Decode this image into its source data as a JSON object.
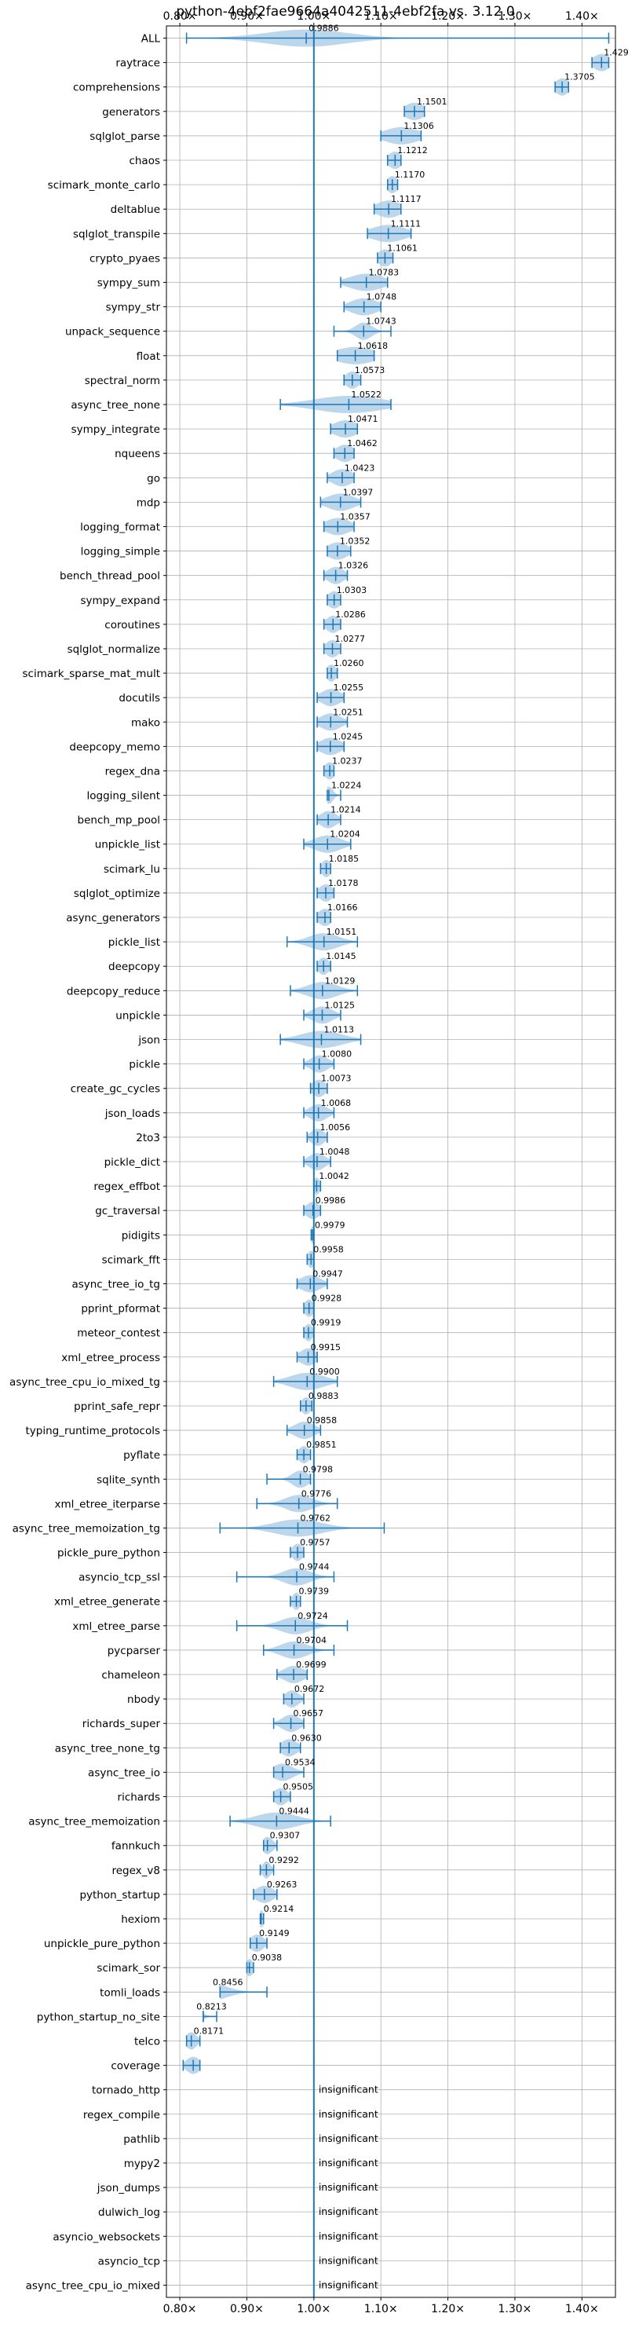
{
  "chart_data": {
    "type": "violin",
    "title": "python-4ebf2fae9664a4042511-4ebf2fa vs. 3.12.0",
    "xlabel": "",
    "ylabel": "",
    "xlim": [
      0.78,
      1.45
    ],
    "x_ticks": [
      0.8,
      0.9,
      1.0,
      1.1,
      1.2,
      1.3,
      1.4
    ],
    "x_tick_labels": [
      "0.80×",
      "0.90×",
      "1.00×",
      "1.10×",
      "1.20×",
      "1.30×",
      "1.40×"
    ],
    "reference_line": 1.0,
    "grid": true,
    "insignificant_label": "insignificant",
    "colors": {
      "violin": "#a6c8e6",
      "marker": "#1f77b4",
      "grid": "#b0b0b0",
      "text": "#000000"
    },
    "benchmarks": [
      {
        "name": "ALL",
        "label": "0.9886",
        "value": 0.9886,
        "min": 0.81,
        "max": 1.44,
        "spread": 0.06
      },
      {
        "name": "raytrace",
        "label": "1.4292",
        "value": 1.4292,
        "min": 1.415,
        "max": 1.44,
        "spread": 0.012
      },
      {
        "name": "comprehensions",
        "label": "1.3705",
        "value": 1.3705,
        "min": 1.36,
        "max": 1.38,
        "spread": 0.01
      },
      {
        "name": "generators",
        "label": "1.1501",
        "value": 1.1501,
        "min": 1.135,
        "max": 1.165,
        "spread": 0.015
      },
      {
        "name": "sqlglot_parse",
        "label": "1.1306",
        "value": 1.1306,
        "min": 1.1,
        "max": 1.16,
        "spread": 0.025
      },
      {
        "name": "chaos",
        "label": "1.1212",
        "value": 1.1212,
        "min": 1.11,
        "max": 1.13,
        "spread": 0.01
      },
      {
        "name": "scimark_monte_carlo",
        "label": "1.1170",
        "value": 1.117,
        "min": 1.11,
        "max": 1.125,
        "spread": 0.008
      },
      {
        "name": "deltablue",
        "label": "1.1117",
        "value": 1.1117,
        "min": 1.09,
        "max": 1.13,
        "spread": 0.018
      },
      {
        "name": "sqlglot_transpile",
        "label": "1.1111",
        "value": 1.1111,
        "min": 1.08,
        "max": 1.145,
        "spread": 0.025
      },
      {
        "name": "crypto_pyaes",
        "label": "1.1061",
        "value": 1.1061,
        "min": 1.095,
        "max": 1.118,
        "spread": 0.01
      },
      {
        "name": "sympy_sum",
        "label": "1.0783",
        "value": 1.0783,
        "min": 1.04,
        "max": 1.11,
        "spread": 0.025
      },
      {
        "name": "sympy_str",
        "label": "1.0748",
        "value": 1.0748,
        "min": 1.045,
        "max": 1.1,
        "spread": 0.02
      },
      {
        "name": "unpack_sequence",
        "label": "1.0743",
        "value": 1.0743,
        "min": 1.03,
        "max": 1.115,
        "spread": 0.012
      },
      {
        "name": "float",
        "label": "1.0618",
        "value": 1.0618,
        "min": 1.035,
        "max": 1.09,
        "spread": 0.03
      },
      {
        "name": "spectral_norm",
        "label": "1.0573",
        "value": 1.0573,
        "min": 1.045,
        "max": 1.07,
        "spread": 0.01
      },
      {
        "name": "async_tree_none",
        "label": "1.0522",
        "value": 1.0522,
        "min": 0.95,
        "max": 1.115,
        "spread": 0.05
      },
      {
        "name": "sympy_integrate",
        "label": "1.0471",
        "value": 1.0471,
        "min": 1.025,
        "max": 1.065,
        "spread": 0.018
      },
      {
        "name": "nqueens",
        "label": "1.0462",
        "value": 1.0462,
        "min": 1.03,
        "max": 1.06,
        "spread": 0.013
      },
      {
        "name": "go",
        "label": "1.0423",
        "value": 1.0423,
        "min": 1.02,
        "max": 1.06,
        "spread": 0.015
      },
      {
        "name": "mdp",
        "label": "1.0397",
        "value": 1.0397,
        "min": 1.01,
        "max": 1.07,
        "spread": 0.02
      },
      {
        "name": "logging_format",
        "label": "1.0357",
        "value": 1.0357,
        "min": 1.015,
        "max": 1.06,
        "spread": 0.018
      },
      {
        "name": "logging_simple",
        "label": "1.0352",
        "value": 1.0352,
        "min": 1.02,
        "max": 1.055,
        "spread": 0.015
      },
      {
        "name": "bench_thread_pool",
        "label": "1.0326",
        "value": 1.0326,
        "min": 1.015,
        "max": 1.05,
        "spread": 0.012
      },
      {
        "name": "sympy_expand",
        "label": "1.0303",
        "value": 1.0303,
        "min": 1.02,
        "max": 1.04,
        "spread": 0.01
      },
      {
        "name": "coroutines",
        "label": "1.0286",
        "value": 1.0286,
        "min": 1.015,
        "max": 1.04,
        "spread": 0.01
      },
      {
        "name": "sqlglot_normalize",
        "label": "1.0277",
        "value": 1.0277,
        "min": 1.015,
        "max": 1.04,
        "spread": 0.01
      },
      {
        "name": "scimark_sparse_mat_mult",
        "label": "1.0260",
        "value": 1.026,
        "min": 1.02,
        "max": 1.035,
        "spread": 0.007
      },
      {
        "name": "docutils",
        "label": "1.0255",
        "value": 1.0255,
        "min": 1.005,
        "max": 1.045,
        "spread": 0.014
      },
      {
        "name": "mako",
        "label": "1.0251",
        "value": 1.0251,
        "min": 1.005,
        "max": 1.05,
        "spread": 0.015
      },
      {
        "name": "deepcopy_memo",
        "label": "1.0245",
        "value": 1.0245,
        "min": 1.005,
        "max": 1.045,
        "spread": 0.015
      },
      {
        "name": "regex_dna",
        "label": "1.0237",
        "value": 1.0237,
        "min": 1.015,
        "max": 1.03,
        "spread": 0.008
      },
      {
        "name": "logging_silent",
        "label": "1.0224",
        "value": 1.0224,
        "min": 1.02,
        "max": 1.04,
        "spread": 0.006
      },
      {
        "name": "bench_mp_pool",
        "label": "1.0214",
        "value": 1.0214,
        "min": 1.005,
        "max": 1.04,
        "spread": 0.012
      },
      {
        "name": "unpickle_list",
        "label": "1.0204",
        "value": 1.0204,
        "min": 0.985,
        "max": 1.055,
        "spread": 0.02
      },
      {
        "name": "scimark_lu",
        "label": "1.0185",
        "value": 1.0185,
        "min": 1.01,
        "max": 1.025,
        "spread": 0.007
      },
      {
        "name": "sqlglot_optimize",
        "label": "1.0178",
        "value": 1.0178,
        "min": 1.005,
        "max": 1.03,
        "spread": 0.01
      },
      {
        "name": "async_generators",
        "label": "1.0166",
        "value": 1.0166,
        "min": 1.005,
        "max": 1.025,
        "spread": 0.01
      },
      {
        "name": "pickle_list",
        "label": "1.0151",
        "value": 1.0151,
        "min": 0.96,
        "max": 1.065,
        "spread": 0.022
      },
      {
        "name": "deepcopy",
        "label": "1.0145",
        "value": 1.0145,
        "min": 1.005,
        "max": 1.025,
        "spread": 0.008
      },
      {
        "name": "deepcopy_reduce",
        "label": "1.0129",
        "value": 1.0129,
        "min": 0.965,
        "max": 1.065,
        "spread": 0.022
      },
      {
        "name": "unpickle",
        "label": "1.0125",
        "value": 1.0125,
        "min": 0.985,
        "max": 1.04,
        "spread": 0.015
      },
      {
        "name": "json",
        "label": "1.0113",
        "value": 1.0113,
        "min": 0.95,
        "max": 1.07,
        "spread": 0.03
      },
      {
        "name": "pickle",
        "label": "1.0080",
        "value": 1.008,
        "min": 0.985,
        "max": 1.03,
        "spread": 0.013
      },
      {
        "name": "create_gc_cycles",
        "label": "1.0073",
        "value": 1.0073,
        "min": 0.995,
        "max": 1.02,
        "spread": 0.01
      },
      {
        "name": "json_loads",
        "label": "1.0068",
        "value": 1.0068,
        "min": 0.985,
        "max": 1.03,
        "spread": 0.013
      },
      {
        "name": "2to3",
        "label": "1.0056",
        "value": 1.0056,
        "min": 0.99,
        "max": 1.02,
        "spread": 0.01
      },
      {
        "name": "pickle_dict",
        "label": "1.0048",
        "value": 1.0048,
        "min": 0.985,
        "max": 1.025,
        "spread": 0.012
      },
      {
        "name": "regex_effbot",
        "label": "1.0042",
        "value": 1.0042,
        "min": 1.0,
        "max": 1.01,
        "spread": 0.005
      },
      {
        "name": "gc_traversal",
        "label": "0.9986",
        "value": 0.9986,
        "min": 0.985,
        "max": 1.01,
        "spread": 0.01
      },
      {
        "name": "pidigits",
        "label": "0.9979",
        "value": 0.9979,
        "min": 0.996,
        "max": 1.0,
        "spread": 0.003
      },
      {
        "name": "scimark_fft",
        "label": "0.9958",
        "value": 0.9958,
        "min": 0.99,
        "max": 1.0,
        "spread": 0.005
      },
      {
        "name": "async_tree_io_tg",
        "label": "0.9947",
        "value": 0.9947,
        "min": 0.975,
        "max": 1.02,
        "spread": 0.015
      },
      {
        "name": "pprint_pformat",
        "label": "0.9928",
        "value": 0.9928,
        "min": 0.985,
        "max": 1.0,
        "spread": 0.007
      },
      {
        "name": "meteor_contest",
        "label": "0.9919",
        "value": 0.9919,
        "min": 0.985,
        "max": 1.0,
        "spread": 0.006
      },
      {
        "name": "xml_etree_process",
        "label": "0.9915",
        "value": 0.9915,
        "min": 0.975,
        "max": 1.005,
        "spread": 0.012
      },
      {
        "name": "async_tree_cpu_io_mixed_tg",
        "label": "0.9900",
        "value": 0.99,
        "min": 0.94,
        "max": 1.035,
        "spread": 0.025
      },
      {
        "name": "pprint_safe_repr",
        "label": "0.9883",
        "value": 0.9883,
        "min": 0.98,
        "max": 0.997,
        "spread": 0.007
      },
      {
        "name": "typing_runtime_protocols",
        "label": "0.9858",
        "value": 0.9858,
        "min": 0.96,
        "max": 1.01,
        "spread": 0.015
      },
      {
        "name": "pyflate",
        "label": "0.9851",
        "value": 0.9851,
        "min": 0.975,
        "max": 0.995,
        "spread": 0.008
      },
      {
        "name": "sqlite_synth",
        "label": "0.9798",
        "value": 0.9798,
        "min": 0.93,
        "max": 0.995,
        "spread": 0.012
      },
      {
        "name": "xml_etree_iterparse",
        "label": "0.9776",
        "value": 0.9776,
        "min": 0.915,
        "max": 1.035,
        "spread": 0.02
      },
      {
        "name": "async_tree_memoization_tg",
        "label": "0.9762",
        "value": 0.9762,
        "min": 0.86,
        "max": 1.105,
        "spread": 0.035
      },
      {
        "name": "pickle_pure_python",
        "label": "0.9757",
        "value": 0.9757,
        "min": 0.965,
        "max": 0.985,
        "spread": 0.008
      },
      {
        "name": "asyncio_tcp_ssl",
        "label": "0.9744",
        "value": 0.9744,
        "min": 0.885,
        "max": 1.03,
        "spread": 0.02
      },
      {
        "name": "xml_etree_generate",
        "label": "0.9739",
        "value": 0.9739,
        "min": 0.965,
        "max": 0.98,
        "spread": 0.006
      },
      {
        "name": "xml_etree_parse",
        "label": "0.9724",
        "value": 0.9724,
        "min": 0.885,
        "max": 1.05,
        "spread": 0.022
      },
      {
        "name": "pycparser",
        "label": "0.9704",
        "value": 0.9704,
        "min": 0.925,
        "max": 1.03,
        "spread": 0.02
      },
      {
        "name": "chameleon",
        "label": "0.9699",
        "value": 0.9699,
        "min": 0.945,
        "max": 0.99,
        "spread": 0.015
      },
      {
        "name": "nbody",
        "label": "0.9672",
        "value": 0.9672,
        "min": 0.955,
        "max": 0.985,
        "spread": 0.01
      },
      {
        "name": "richards_super",
        "label": "0.9657",
        "value": 0.9657,
        "min": 0.94,
        "max": 0.985,
        "spread": 0.013
      },
      {
        "name": "async_tree_none_tg",
        "label": "0.9630",
        "value": 0.963,
        "min": 0.95,
        "max": 0.98,
        "spread": 0.012
      },
      {
        "name": "async_tree_io",
        "label": "0.9534",
        "value": 0.9534,
        "min": 0.94,
        "max": 0.985,
        "spread": 0.015
      },
      {
        "name": "richards",
        "label": "0.9505",
        "value": 0.9505,
        "min": 0.94,
        "max": 0.965,
        "spread": 0.01
      },
      {
        "name": "async_tree_memoization",
        "label": "0.9444",
        "value": 0.9444,
        "min": 0.875,
        "max": 1.025,
        "spread": 0.03
      },
      {
        "name": "fannkuch",
        "label": "0.9307",
        "value": 0.9307,
        "min": 0.925,
        "max": 0.945,
        "spread": 0.008
      },
      {
        "name": "regex_v8",
        "label": "0.9292",
        "value": 0.9292,
        "min": 0.92,
        "max": 0.94,
        "spread": 0.006
      },
      {
        "name": "python_startup",
        "label": "0.9263",
        "value": 0.9263,
        "min": 0.91,
        "max": 0.945,
        "spread": 0.013
      },
      {
        "name": "hexiom",
        "label": "0.9214",
        "value": 0.9214,
        "min": 0.92,
        "max": 0.925,
        "spread": 0.004
      },
      {
        "name": "unpickle_pure_python",
        "label": "0.9149",
        "value": 0.9149,
        "min": 0.905,
        "max": 0.93,
        "spread": 0.01
      },
      {
        "name": "scimark_sor",
        "label": "0.9038",
        "value": 0.9038,
        "min": 0.9,
        "max": 0.91,
        "spread": 0.006
      },
      {
        "name": "tomli_loads",
        "label": "0.8456",
        "value": 0.8456,
        "min": 0.86,
        "max": 0.93,
        "spread": 0.025
      },
      {
        "name": "python_startup_no_site",
        "label": "0.8213",
        "value": 0.8213,
        "min": 0.835,
        "max": 0.855,
        "spread": 0.01
      },
      {
        "name": "telco",
        "label": "0.8171",
        "value": 0.8171,
        "min": 0.81,
        "max": 0.83,
        "spread": 0.008
      },
      {
        "name": "coverage",
        "label": "",
        "value": 0.82,
        "min": 0.805,
        "max": 0.83,
        "spread": 0.01
      },
      {
        "name": "tornado_http",
        "label": "insignificant",
        "value": null
      },
      {
        "name": "regex_compile",
        "label": "insignificant",
        "value": null
      },
      {
        "name": "pathlib",
        "label": "insignificant",
        "value": null
      },
      {
        "name": "mypy2",
        "label": "insignificant",
        "value": null
      },
      {
        "name": "json_dumps",
        "label": "insignificant",
        "value": null
      },
      {
        "name": "dulwich_log",
        "label": "insignificant",
        "value": null
      },
      {
        "name": "asyncio_websockets",
        "label": "insignificant",
        "value": null
      },
      {
        "name": "asyncio_tcp",
        "label": "insignificant",
        "value": null
      },
      {
        "name": "async_tree_cpu_io_mixed",
        "label": "insignificant",
        "value": null
      }
    ]
  }
}
